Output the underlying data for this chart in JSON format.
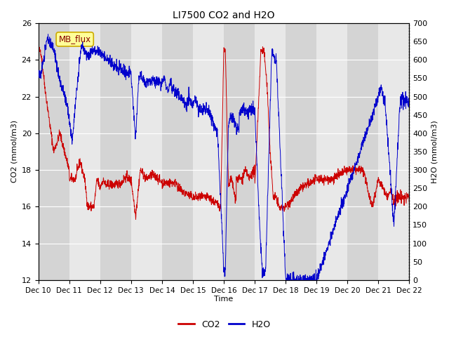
{
  "title": "LI7500 CO2 and H2O",
  "xlabel": "Time",
  "ylabel_left": "CO2 (mmol/m3)",
  "ylabel_right": "H2O (mmol/m3)",
  "co2_ylim": [
    12,
    26
  ],
  "h2o_ylim": [
    0,
    700
  ],
  "co2_yticks": [
    12,
    14,
    16,
    18,
    20,
    22,
    24,
    26
  ],
  "h2o_yticks": [
    0,
    50,
    100,
    150,
    200,
    250,
    300,
    350,
    400,
    450,
    500,
    550,
    600,
    650,
    700
  ],
  "x_tick_labels": [
    "Dec 10",
    "Dec 11",
    "Dec 12",
    "Dec 13",
    "Dec 14",
    "Dec 15",
    "Dec 16",
    "Dec 17",
    "Dec 18",
    "Dec 19",
    "Dec 20",
    "Dec 21",
    "Dec 22"
  ],
  "co2_color": "#cc0000",
  "h2o_color": "#0000cc",
  "background_color": "#ffffff",
  "plot_bg_color": "#e8e8e8",
  "band_color": "#d4d4d4",
  "annotation_text": "MB_flux",
  "annotation_bg": "#ffff99",
  "annotation_border": "#ccaa00",
  "legend_co2": "CO2",
  "legend_h2o": "H2O"
}
